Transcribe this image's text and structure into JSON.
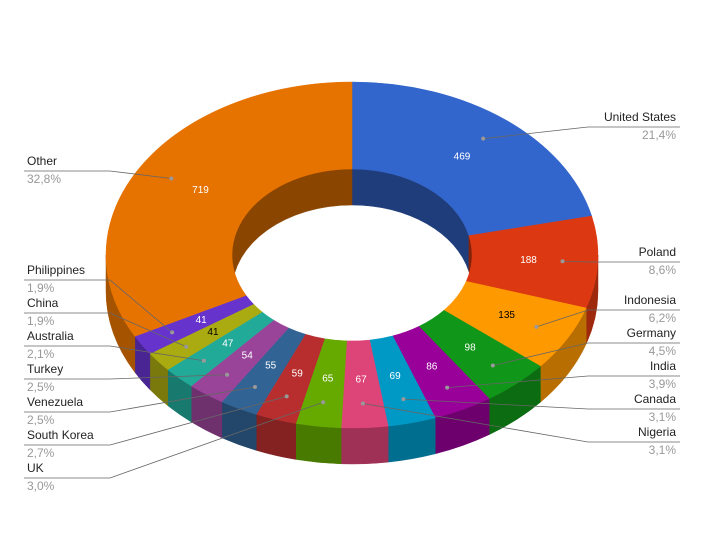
{
  "chart_data": {
    "type": "donut",
    "categories": [
      "United States",
      "Poland",
      "Indonesia",
      "Germany",
      "India",
      "Canada",
      "Nigeria",
      "UK",
      "South Korea",
      "Venezuela",
      "Turkey",
      "Australia",
      "China",
      "Philippines",
      "Other"
    ],
    "values": [
      469,
      188,
      135,
      98,
      86,
      69,
      67,
      65,
      59,
      55,
      54,
      47,
      41,
      41,
      719
    ],
    "percent_labels": [
      "21,4%",
      "8,6%",
      "6,2%",
      "4,5%",
      "3,9%",
      "3,1%",
      "3,1%",
      "3,0%",
      "2,7%",
      "2,5%",
      "2,5%",
      "2,1%",
      "1,9%",
      "1,9%",
      "32,8%"
    ],
    "colors": [
      "#3366cc",
      "#dc3912",
      "#ff9900",
      "#109618",
      "#990099",
      "#0099c6",
      "#dd4477",
      "#66aa00",
      "#b82e2e",
      "#316395",
      "#994499",
      "#22aa99",
      "#aaaa11",
      "#6633cc",
      "#e67300"
    ]
  }
}
